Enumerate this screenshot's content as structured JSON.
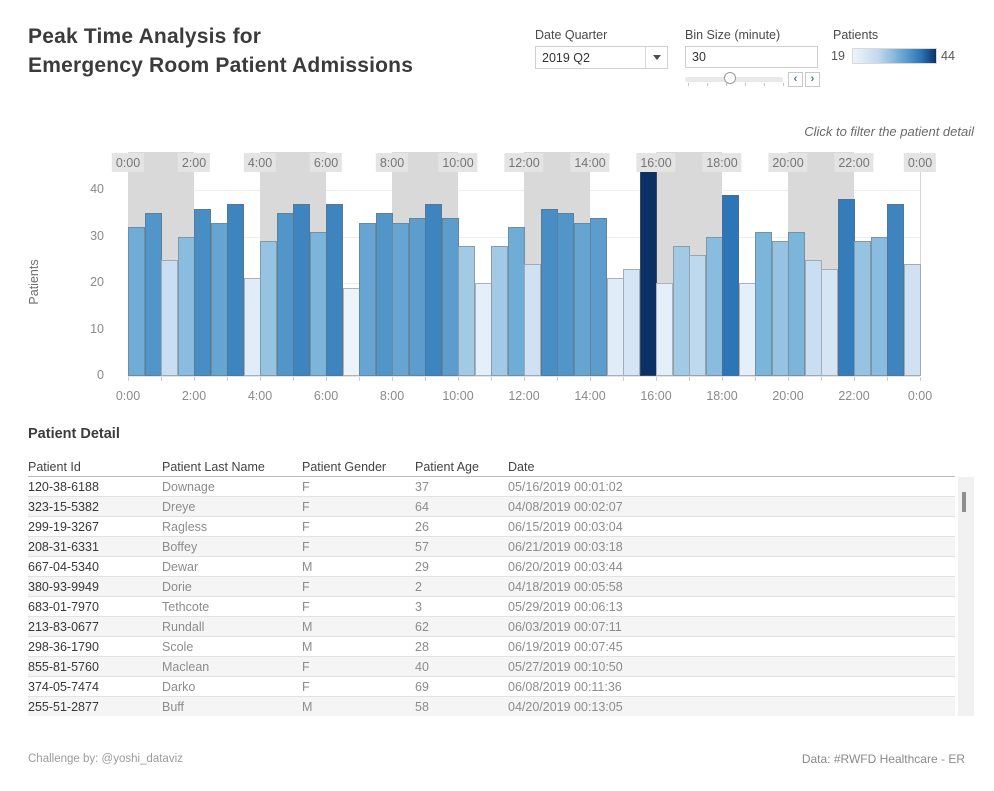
{
  "header": {
    "title_line1": "Peak Time Analysis for",
    "title_line2": "Emergency Room Patient Admissions",
    "filters": {
      "date_quarter": {
        "label": "Date Quarter",
        "value": "2019 Q2"
      },
      "bin_size": {
        "label": "Bin Size (minute)",
        "value": "30"
      },
      "patients_legend": {
        "label": "Patients",
        "min": "19",
        "max": "44"
      }
    }
  },
  "icons": {
    "slider_prev": "‹",
    "slider_next": "›"
  },
  "annotation": "Click to filter the patient detail",
  "chart_data": {
    "type": "bar",
    "title": "",
    "xlabel": "",
    "ylabel": "Patients",
    "yticks": [
      0,
      10,
      20,
      30,
      40
    ],
    "ylim": [
      0,
      48
    ],
    "bin_minutes": 30,
    "x_axis_labels": [
      "0:00",
      "2:00",
      "4:00",
      "6:00",
      "8:00",
      "10:00",
      "12:00",
      "14:00",
      "16:00",
      "18:00",
      "20:00",
      "22:00",
      "0:00"
    ],
    "categories": [
      "0:00",
      "0:30",
      "1:00",
      "1:30",
      "2:00",
      "2:30",
      "3:00",
      "3:30",
      "4:00",
      "4:30",
      "5:00",
      "5:30",
      "6:00",
      "6:30",
      "7:00",
      "7:30",
      "8:00",
      "8:30",
      "9:00",
      "9:30",
      "10:00",
      "10:30",
      "11:00",
      "11:30",
      "12:00",
      "12:30",
      "13:00",
      "13:30",
      "14:00",
      "14:30",
      "15:00",
      "15:30",
      "16:00",
      "16:30",
      "17:00",
      "17:30",
      "18:00",
      "18:30",
      "19:00",
      "19:30",
      "20:00",
      "20:30",
      "21:00",
      "21:30",
      "22:00",
      "22:30",
      "23:00",
      "23:30"
    ],
    "values": [
      32,
      35,
      25,
      30,
      36,
      33,
      37,
      21,
      29,
      35,
      37,
      31,
      37,
      19,
      33,
      35,
      33,
      34,
      37,
      34,
      28,
      20,
      28,
      32,
      24,
      36,
      35,
      33,
      34,
      21,
      23,
      44,
      20,
      28,
      26,
      30,
      39,
      20,
      31,
      29,
      31,
      25,
      23,
      38,
      29,
      30,
      37,
      24
    ],
    "color_scale": {
      "min_value": 19,
      "max_value": 44,
      "min_color": "#ebf3fb",
      "max_color": "#0a3064"
    },
    "shaded_band_hours": [
      [
        0,
        2
      ],
      [
        4,
        6
      ],
      [
        8,
        10
      ],
      [
        12,
        14
      ],
      [
        16,
        18
      ],
      [
        20,
        22
      ]
    ],
    "legend_position": "top-right",
    "grid": true
  },
  "table": {
    "title": "Patient Detail",
    "columns": [
      "Patient Id",
      "Patient Last Name",
      "Patient Gender",
      "Patient Age",
      "Date"
    ],
    "rows": [
      [
        "120-38-6188",
        "Downage",
        "F",
        "37",
        "05/16/2019 00:01:02"
      ],
      [
        "323-15-5382",
        "Dreye",
        "F",
        "64",
        "04/08/2019 00:02:07"
      ],
      [
        "299-19-3267",
        "Ragless",
        "F",
        "26",
        "06/15/2019 00:03:04"
      ],
      [
        "208-31-6331",
        "Boffey",
        "F",
        "57",
        "06/21/2019 00:03:18"
      ],
      [
        "667-04-5340",
        "Dewar",
        "M",
        "29",
        "06/20/2019 00:03:44"
      ],
      [
        "380-93-9949",
        "Dorie",
        "F",
        "2",
        "04/18/2019 00:05:58"
      ],
      [
        "683-01-7970",
        "Tethcote",
        "F",
        "3",
        "05/29/2019 00:06:13"
      ],
      [
        "213-83-0677",
        "Rundall",
        "M",
        "62",
        "06/03/2019 00:07:11"
      ],
      [
        "298-36-1790",
        "Scole",
        "M",
        "28",
        "06/19/2019 00:07:45"
      ],
      [
        "855-81-5760",
        "Maclean",
        "F",
        "40",
        "05/27/2019 00:10:50"
      ],
      [
        "374-05-7474",
        "Darko",
        "F",
        "69",
        "06/08/2019 00:11:36"
      ],
      [
        "255-51-2877",
        "Buff",
        "M",
        "58",
        "04/20/2019 00:13:05"
      ]
    ]
  },
  "footer": {
    "left": "Challenge by: @yoshi_dataviz",
    "right": "Data: #RWFD Healthcare - ER"
  }
}
